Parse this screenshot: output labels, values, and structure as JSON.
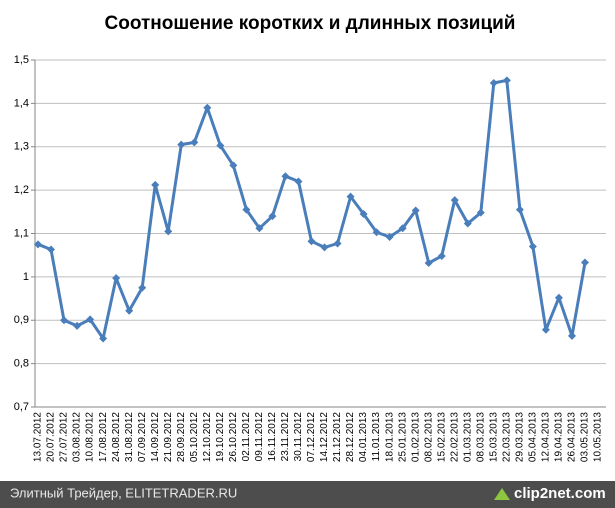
{
  "chart_data": {
    "type": "line",
    "title": "Соотношение коротких и длинных позиций",
    "categories": [
      "13.07.2012",
      "20.07.2012",
      "27.07.2012",
      "03.08.2012",
      "10.08.2012",
      "17.08.2012",
      "24.08.2012",
      "31.08.2012",
      "07.09.2012",
      "14.09.2012",
      "21.09.2012",
      "28.09.2012",
      "05.10.2012",
      "12.10.2012",
      "19.10.2012",
      "26.10.2012",
      "02.11.2012",
      "09.11.2012",
      "16.11.2012",
      "23.11.2012",
      "30.11.2012",
      "07.12.2012",
      "14.12.2012",
      "21.12.2012",
      "28.12.2012",
      "04.01.2013",
      "11.01.2013",
      "18.01.2013",
      "25.01.2013",
      "01.02.2013",
      "08.02.2013",
      "15.02.2013",
      "22.02.2013",
      "01.03.2013",
      "08.03.2013",
      "15.03.2013",
      "22.03.2013",
      "29.03.2013",
      "05.04.2013",
      "12.04.2013",
      "19.04.2013",
      "26.04.2013",
      "03.05.2013",
      "10.05.2013"
    ],
    "series": [
      {
        "name": "Соотношение",
        "color": "#4a7ebb",
        "values": [
          1.075,
          1.063,
          0.9,
          0.887,
          0.902,
          0.858,
          0.997,
          0.922,
          0.975,
          1.212,
          1.105,
          1.305,
          1.31,
          1.39,
          1.303,
          1.257,
          1.155,
          1.112,
          1.14,
          1.232,
          1.22,
          1.082,
          1.068,
          1.077,
          1.185,
          1.145,
          1.103,
          1.092,
          1.112,
          1.153,
          1.032,
          1.048,
          1.177,
          1.123,
          1.148,
          1.447,
          1.453,
          1.155,
          1.07,
          0.878,
          0.952,
          0.864,
          1.033,
          null
        ]
      }
    ],
    "ylim": [
      0.7,
      1.5
    ],
    "yticks": [
      {
        "value": 0.7,
        "label": "0,7"
      },
      {
        "value": 0.8,
        "label": "0,8"
      },
      {
        "value": 0.9,
        "label": "0,9"
      },
      1,
      {
        "value": 1.1,
        "label": "1,1"
      },
      {
        "value": 1.2,
        "label": "1,2"
      },
      {
        "value": 1.3,
        "label": "1,3"
      },
      {
        "value": 1.4,
        "label": "1,4"
      },
      {
        "value": 1.5,
        "label": "1,5"
      }
    ],
    "grid": true
  },
  "footer": {
    "source": "Элитный Трейдер, ELITETRADER.RU",
    "logo": "clip2net.com"
  }
}
